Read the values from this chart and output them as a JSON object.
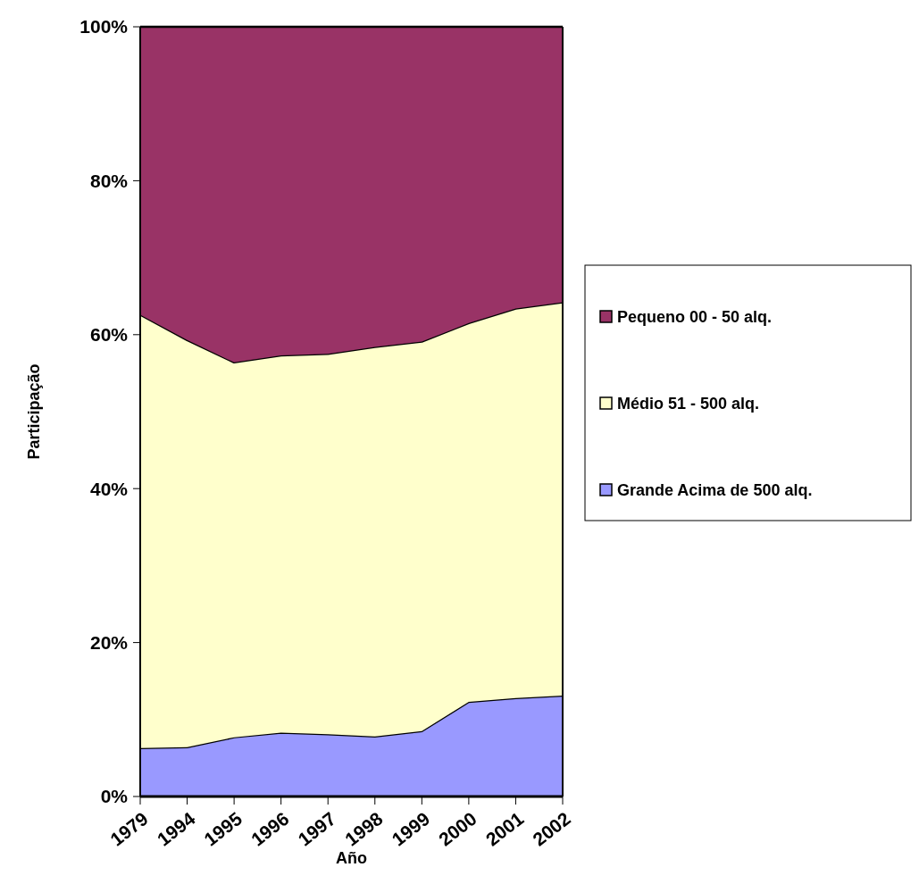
{
  "chart_data": {
    "type": "area",
    "stacked": true,
    "xlabel": "Año",
    "ylabel": "Participação",
    "categories": [
      "1979",
      "1994",
      "1995",
      "1996",
      "1997",
      "1998",
      "1999",
      "2000",
      "2001",
      "2002"
    ],
    "series": [
      {
        "name": "Grande Acima de 500 alq.",
        "color": "#9999ff",
        "values": [
          6.3,
          6.4,
          7.7,
          8.3,
          8.1,
          7.8,
          8.5,
          12.3,
          12.8,
          13.1
        ]
      },
      {
        "name": "Médio 51 - 500 alq.",
        "color": "#ffffcc",
        "values": [
          56.3,
          52.9,
          48.7,
          49.0,
          49.4,
          50.6,
          50.6,
          49.2,
          50.6,
          51.1
        ]
      },
      {
        "name": "Pequeno 00 - 50 alq.",
        "color": "#993366",
        "values": [
          37.4,
          40.7,
          43.6,
          42.7,
          42.5,
          41.6,
          40.9,
          38.5,
          36.6,
          35.8
        ]
      }
    ],
    "ylim": [
      0,
      100
    ],
    "yticks": [
      {
        "value": 0,
        "label": "0%"
      },
      {
        "value": 20,
        "label": "20%"
      },
      {
        "value": 40,
        "label": "40%"
      },
      {
        "value": 60,
        "label": "60%"
      },
      {
        "value": 80,
        "label": "80%"
      },
      {
        "value": 100,
        "label": "100%"
      }
    ],
    "legend": "right",
    "grid": false
  }
}
